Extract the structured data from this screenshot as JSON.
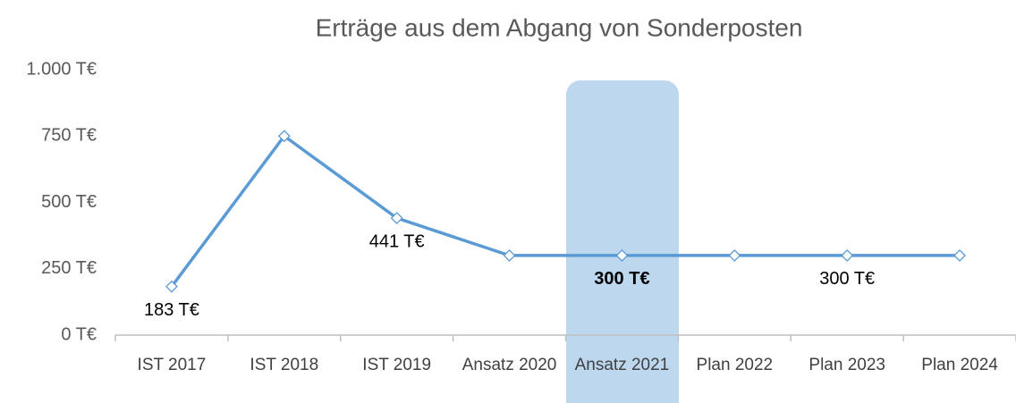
{
  "chart_data": {
    "type": "line",
    "title": "Erträge aus dem Abgang  von Sonderposten",
    "categories": [
      "IST 2017",
      "IST 2018",
      "IST 2019",
      "Ansatz 2020",
      "Ansatz 2021",
      "Plan 2022",
      "Plan 2023",
      "Plan 2024"
    ],
    "series": [
      {
        "name": "Erträge",
        "color": "#5b9bd5",
        "values": [
          183,
          750,
          441,
          300,
          300,
          300,
          300,
          300
        ],
        "value_labels": [
          "183 T€",
          null,
          "441 T€",
          null,
          "300 T€",
          null,
          "300 T€",
          null
        ]
      }
    ],
    "ylim": [
      0,
      1000
    ],
    "yticks": [
      {
        "value": 0,
        "label": "0 T€"
      },
      {
        "value": 250,
        "label": "250 T€"
      },
      {
        "value": 500,
        "label": "500 T€"
      },
      {
        "value": 750,
        "label": "750 T€"
      },
      {
        "value": 1000,
        "label": "1.000 T€"
      }
    ],
    "grid": false
  }
}
